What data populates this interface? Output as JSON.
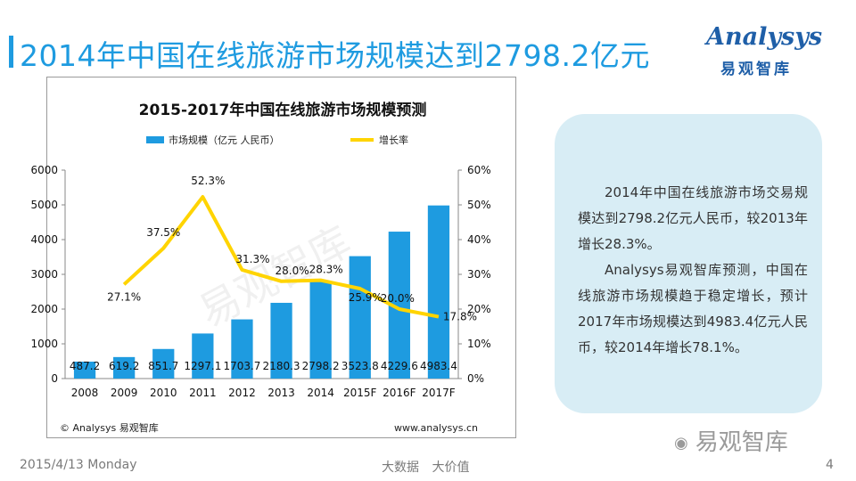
{
  "header": {
    "title": "2014年中国在线旅游市场规模达到2798.2亿元"
  },
  "logo": {
    "brand": "Analysys",
    "brand_cn": "易观智库"
  },
  "chart_data": {
    "type": "bar+line",
    "title": "2015-2017年中国在线旅游市场规模预测",
    "categories": [
      "2008",
      "2009",
      "2010",
      "2011",
      "2012",
      "2013",
      "2014",
      "2015F",
      "2016F",
      "2017F"
    ],
    "series": [
      {
        "name": "市场规模（亿元 人民币）",
        "type": "bar",
        "axis": "left",
        "values": [
          487.2,
          619.2,
          851.7,
          1297.1,
          1703.7,
          2180.3,
          2798.2,
          3523.8,
          4229.6,
          4983.4
        ],
        "labels": [
          "487.2",
          "619.2",
          "851.7",
          "1297.1",
          "1703.7",
          "2180.3",
          "2798.2",
          "3523.8",
          "4229.6",
          "4983.4"
        ]
      },
      {
        "name": "增长率",
        "type": "line",
        "axis": "right",
        "values": [
          null,
          27.1,
          37.5,
          52.3,
          31.3,
          28.0,
          28.3,
          25.9,
          20.0,
          17.8
        ],
        "labels": [
          "",
          "27.1%",
          "37.5%",
          "52.3%",
          "31.3%",
          "28.0%",
          "28.3%",
          "25.9%",
          "20.0%",
          "17.8%"
        ]
      }
    ],
    "left_axis": {
      "ylim": [
        0,
        6000
      ],
      "ticks": [
        "0",
        "1000",
        "2000",
        "3000",
        "4000",
        "5000",
        "6000"
      ]
    },
    "right_axis": {
      "ylim": [
        0,
        60
      ],
      "ticks": [
        "0%",
        "10%",
        "20%",
        "30%",
        "40%",
        "50%",
        "60%"
      ]
    },
    "colors": {
      "bar": "#1e9be0",
      "line": "#ffd400"
    },
    "legend_position": "top",
    "source_left": "© Analysys 易观智库",
    "source_right": "www.analysys.cn",
    "watermark": "易观智库"
  },
  "note": {
    "paragraphs": [
      "2014年中国在线旅游市场交易规模达到2798.2亿元人民币，较2013年增长28.3%。",
      "Analysys易观智库预测，中国在线旅游市场规模趋于稳定增长，预计2017年市场规模达到4983.4亿元人民币，较2014年增长78.1%。"
    ]
  },
  "footer": {
    "date": "2015/4/13 Monday",
    "tagline": "大数据 大价值",
    "page": "4"
  },
  "wechat": {
    "label": "易观智库"
  }
}
